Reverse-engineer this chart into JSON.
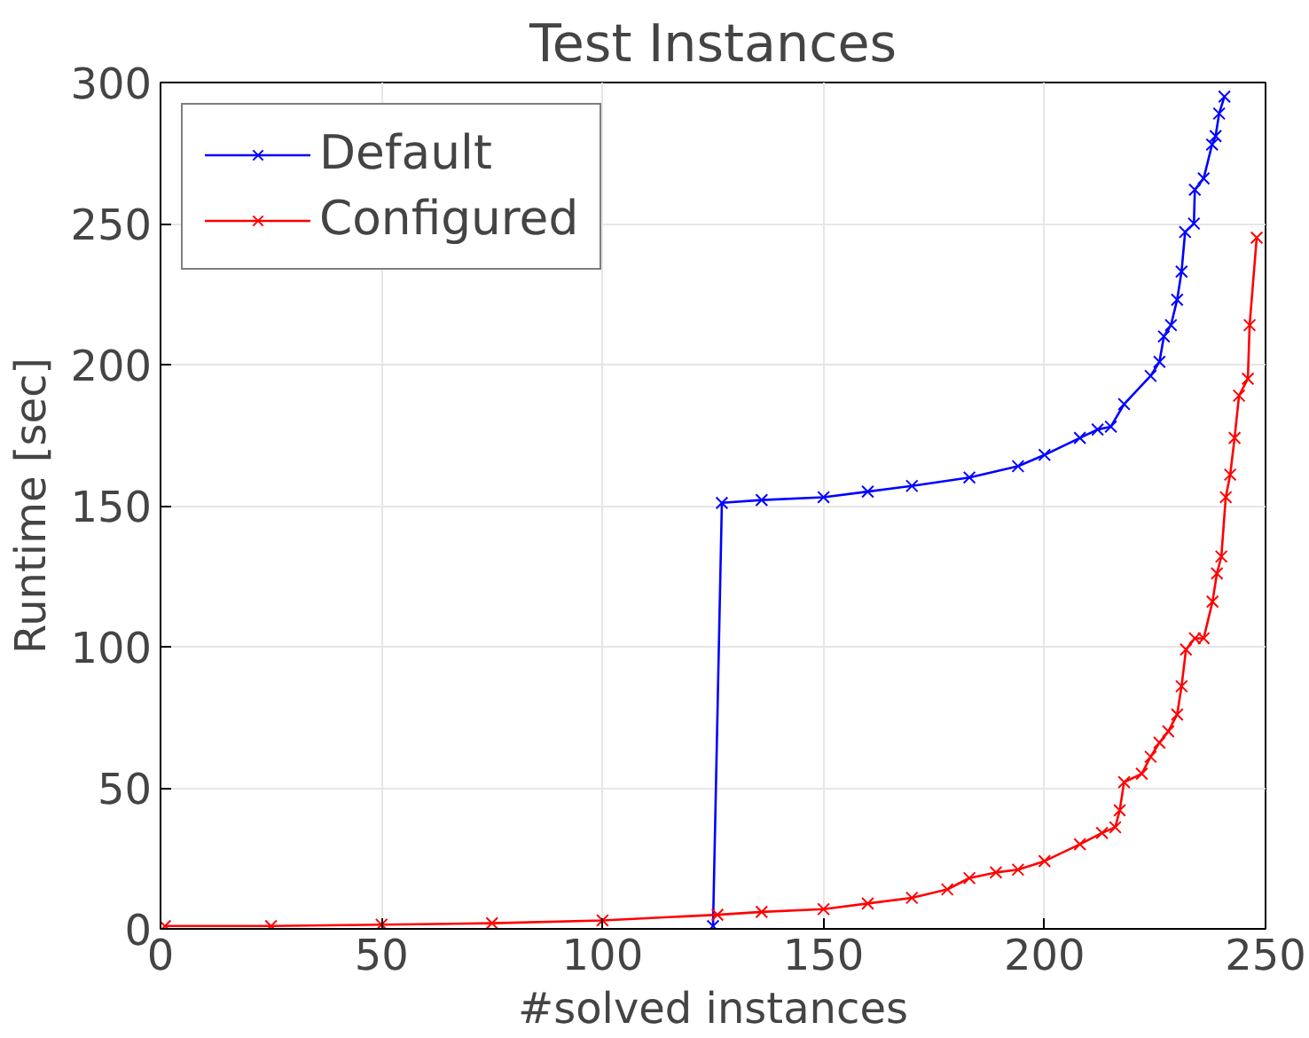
{
  "chart_data": {
    "type": "line",
    "title": "Test Instances",
    "xlabel": "#solved instances",
    "ylabel": "Runtime [sec]",
    "series": [
      {
        "name": "Default",
        "color": "#0000ff",
        "x": [
          125,
          127,
          136,
          150,
          160,
          170,
          183,
          194,
          200,
          208,
          212,
          215,
          218,
          224,
          226,
          227,
          228.6,
          230,
          231,
          231.8,
          233.8,
          234,
          236,
          237.9,
          238.7,
          239.5,
          240.7
        ],
        "values": [
          1,
          151,
          152,
          153,
          155,
          157,
          160,
          164,
          168,
          174,
          177,
          178,
          186,
          196,
          201,
          210,
          214,
          223,
          233,
          247,
          250,
          262,
          266,
          278,
          281,
          289,
          295
        ]
      },
      {
        "name": "Configured",
        "color": "#ff0000",
        "x": [
          1,
          25,
          50,
          75,
          100,
          126,
          136,
          150,
          160,
          170,
          178,
          183,
          189,
          194,
          200,
          208,
          213,
          216,
          217,
          218,
          222,
          224,
          226,
          228,
          230,
          231,
          232,
          234,
          236,
          238,
          239,
          240,
          241,
          242,
          243,
          244,
          246,
          246.4,
          248
        ],
        "values": [
          1,
          1,
          1.5,
          2,
          3,
          5,
          6,
          7,
          9,
          11,
          14,
          18,
          20,
          21,
          24,
          30,
          34,
          36,
          42,
          52,
          55,
          61,
          66,
          70,
          76,
          86,
          99,
          103,
          103,
          116,
          126,
          132,
          153,
          161,
          174,
          189,
          195,
          214,
          245
        ]
      }
    ],
    "xlim": [
      0,
      250
    ],
    "ylim": [
      0,
      300
    ],
    "xticks": [
      0,
      50,
      100,
      150,
      200,
      250
    ],
    "yticks": [
      0,
      50,
      100,
      150,
      200,
      250,
      300
    ],
    "grid": true,
    "legend": "top left",
    "marker": "cross",
    "line_style": "solid"
  }
}
